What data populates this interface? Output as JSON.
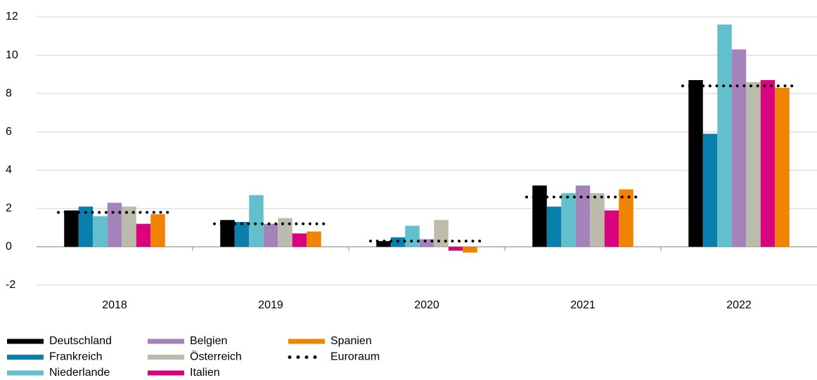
{
  "chart_data": {
    "type": "bar",
    "categories": [
      "2018",
      "2019",
      "2020",
      "2021",
      "2022"
    ],
    "series": [
      {
        "name": "Deutschland",
        "color": "#000000",
        "values": [
          1.9,
          1.4,
          0.3,
          3.2,
          8.7
        ]
      },
      {
        "name": "Frankreich",
        "color": "#0a7fab",
        "values": [
          2.1,
          1.3,
          0.5,
          2.1,
          5.9
        ]
      },
      {
        "name": "Niederlande",
        "color": "#62c0cc",
        "values": [
          1.6,
          2.7,
          1.1,
          2.8,
          11.6
        ]
      },
      {
        "name": "Belgien",
        "color": "#a383b9",
        "values": [
          2.3,
          1.2,
          0.4,
          3.2,
          10.3
        ]
      },
      {
        "name": "Österreich",
        "color": "#bdbbab",
        "values": [
          2.1,
          1.5,
          1.4,
          2.8,
          8.6
        ]
      },
      {
        "name": "Italien",
        "color": "#d9037e",
        "values": [
          1.2,
          0.7,
          -0.2,
          1.9,
          8.7
        ]
      },
      {
        "name": "Spanien",
        "color": "#f08300",
        "values": [
          1.7,
          0.8,
          -0.3,
          3.0,
          8.3
        ]
      }
    ],
    "line_series": {
      "name": "Euroraum",
      "color": "#000000",
      "style": "dotted",
      "values": [
        1.8,
        1.2,
        0.3,
        2.6,
        8.4
      ]
    },
    "ylim": [
      -2,
      12
    ],
    "yticks": [
      -2,
      0,
      2,
      4,
      6,
      8,
      10,
      12
    ],
    "grid": true
  }
}
